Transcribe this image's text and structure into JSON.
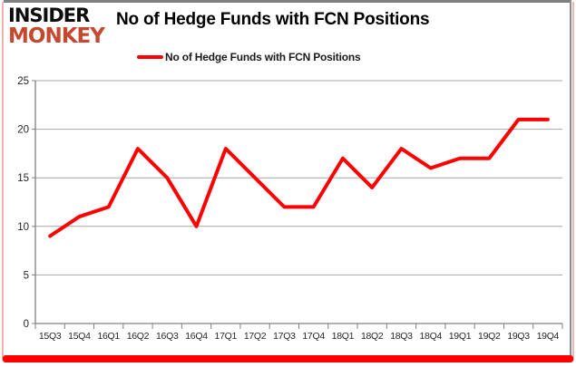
{
  "logo": {
    "line1": "INSIDER",
    "line2": "MONKEY"
  },
  "title": "No of Hedge Funds with FCN Positions",
  "legend": {
    "label": "No of Hedge Funds with FCN Positions"
  },
  "chart_data": {
    "type": "line",
    "title": "No of Hedge Funds with FCN Positions",
    "categories": [
      "15Q3",
      "15Q4",
      "16Q1",
      "16Q2",
      "16Q3",
      "16Q4",
      "17Q1",
      "17Q2",
      "17Q3",
      "17Q4",
      "18Q1",
      "18Q2",
      "18Q3",
      "18Q4",
      "19Q1",
      "19Q2",
      "19Q3",
      "19Q4"
    ],
    "series": [
      {
        "name": "No of Hedge Funds with FCN Positions",
        "values": [
          9,
          11,
          12,
          18,
          15,
          10,
          18,
          15,
          12,
          12,
          17,
          14,
          18,
          16,
          17,
          17,
          21,
          21
        ]
      }
    ],
    "xlabel": "",
    "ylabel": "",
    "ylim": [
      0,
      25
    ],
    "yticks": [
      0,
      5,
      10,
      15,
      20,
      25
    ],
    "grid": true,
    "legend_position": "top",
    "colors": {
      "line": "#fe0000",
      "gridline": "#a6a6a6",
      "axis": "#808080",
      "tick_label": "#262626",
      "logo_accent": "#c4492e",
      "frame_top": "#7f7f7f",
      "frame_bottom": "#fe0000",
      "frame_side": "#f2b4ad"
    }
  }
}
